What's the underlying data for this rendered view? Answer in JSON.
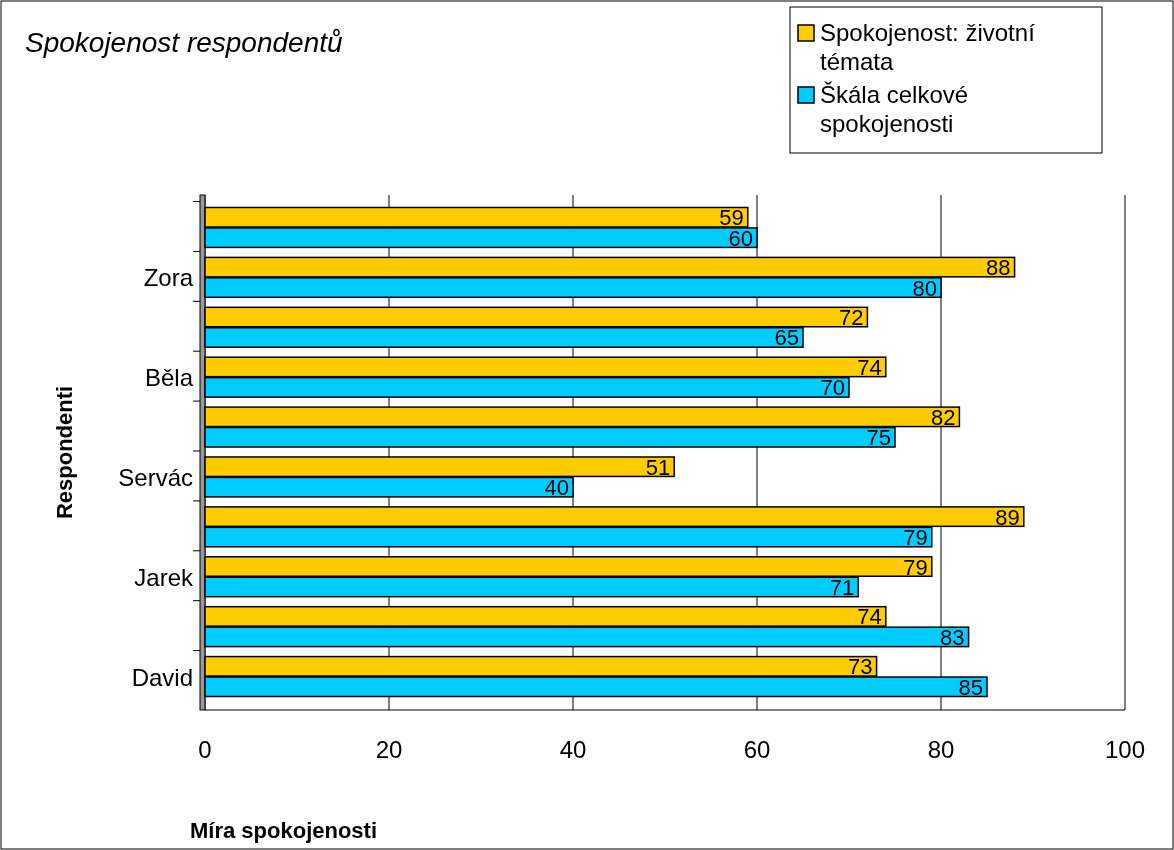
{
  "chart_data": {
    "type": "bar",
    "orientation": "horizontal",
    "title": "Spokojenost respondentů",
    "xlabel": "Míra spokojenosti",
    "ylabel": "Respondenti",
    "categories": [
      null,
      "Zora",
      null,
      "Běla",
      null,
      "Servác",
      null,
      "Jarek",
      null,
      "David"
    ],
    "series": [
      {
        "name": "Spokojenost: životní témata",
        "color": "#ffcc00",
        "values": [
          59,
          88,
          72,
          74,
          82,
          51,
          89,
          79,
          74,
          73
        ]
      },
      {
        "name": "Škála celkové spokojenosti",
        "color": "#00ccff",
        "values": [
          60,
          80,
          65,
          70,
          75,
          40,
          79,
          71,
          83,
          85
        ]
      }
    ],
    "xlim": [
      0,
      100
    ],
    "xticks": [
      0,
      20,
      40,
      60,
      80,
      100
    ],
    "grid": "x",
    "legend": "top right",
    "data_labels": true
  }
}
